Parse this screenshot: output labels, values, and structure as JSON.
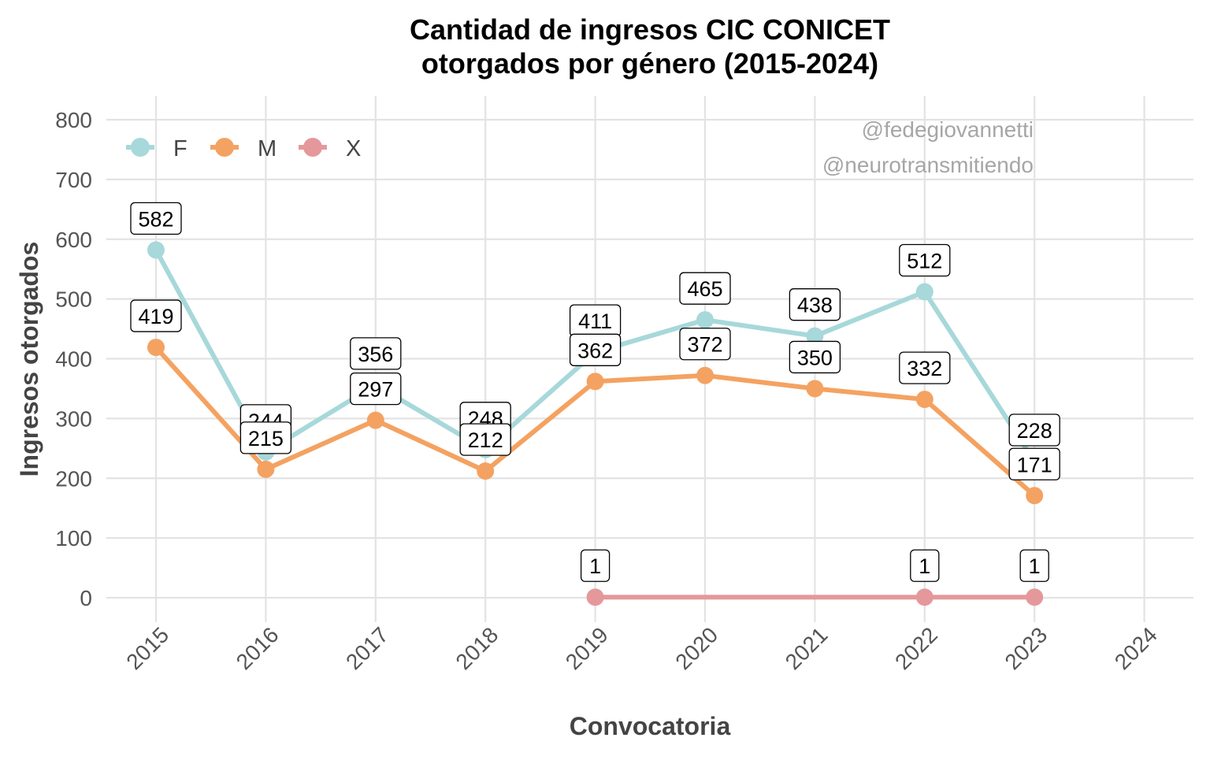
{
  "chart_data": {
    "type": "line",
    "title": "Cantidad de ingresos CIC CONICET",
    "subtitle": "otorgados por género (2015-2024)",
    "xlabel": "Convocatoria",
    "ylabel": "Ingresos otorgados",
    "x": [
      "2015",
      "2016",
      "2017",
      "2018",
      "2019",
      "2020",
      "2021",
      "2022",
      "2023",
      "2024"
    ],
    "ylim": [
      0,
      800
    ],
    "yticks": [
      0,
      100,
      200,
      300,
      400,
      500,
      600,
      700,
      800
    ],
    "grid": true,
    "legend_position": "top-left",
    "series": [
      {
        "name": "F",
        "color": "#A7D8DA",
        "points": [
          [
            "2015",
            582
          ],
          [
            "2016",
            244
          ],
          [
            "2017",
            356
          ],
          [
            "2018",
            248
          ],
          [
            "2019",
            411
          ],
          [
            "2020",
            465
          ],
          [
            "2021",
            438
          ],
          [
            "2022",
            512
          ],
          [
            "2023",
            228
          ]
        ]
      },
      {
        "name": "M",
        "color": "#F4A261",
        "points": [
          [
            "2015",
            419
          ],
          [
            "2016",
            215
          ],
          [
            "2017",
            297
          ],
          [
            "2018",
            212
          ],
          [
            "2019",
            362
          ],
          [
            "2020",
            372
          ],
          [
            "2021",
            350
          ],
          [
            "2022",
            332
          ],
          [
            "2023",
            171
          ]
        ]
      },
      {
        "name": "X",
        "color": "#E5989B",
        "points": [
          [
            "2019",
            1
          ],
          [
            "2022",
            1
          ],
          [
            "2023",
            1
          ]
        ]
      }
    ],
    "annotations": [
      "@fedegiovannetti",
      "@neurotransmitiendo"
    ]
  }
}
